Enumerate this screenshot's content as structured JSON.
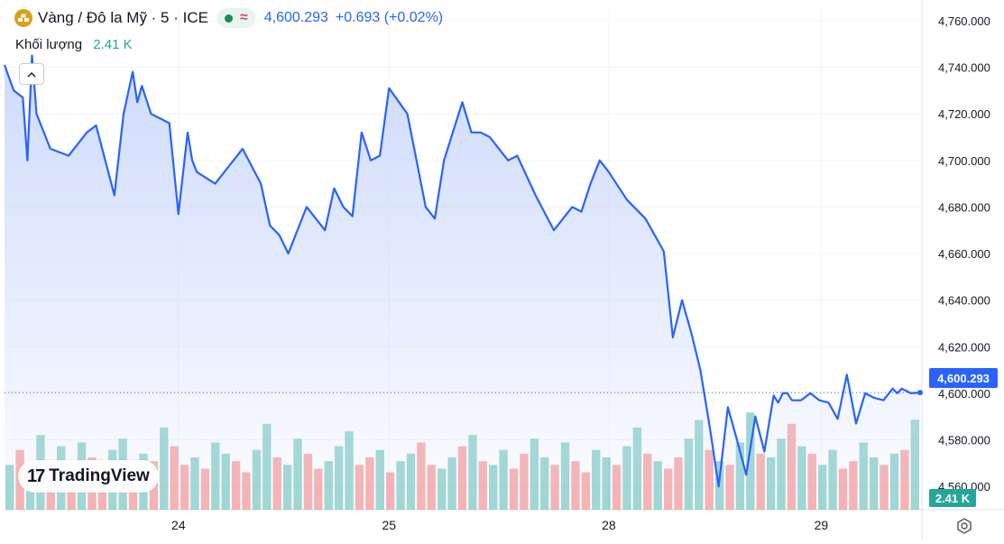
{
  "legend": {
    "symbol_title": "Vàng / Đô la Mỹ · 5 · ICE",
    "symbol_icon": "gold-bars-icon",
    "market_status": "market-open-dot",
    "approx": "≈",
    "price": "4,600.293",
    "change": "+0.693 (+0.02%)",
    "volume_label": "Khối lượng",
    "volume_value": "2.41 K"
  },
  "branding": {
    "logo_mark": "17",
    "logo_text": "TradingView"
  },
  "price_axis": {
    "current_price_label": "4,600.293",
    "current_volume_label": "2.41 K"
  },
  "colors": {
    "line": "#2962ff",
    "area_top": "#c9d7fb",
    "vol_up": "#26a69a",
    "vol_down": "#ef5350",
    "vol_tag": "#26a69a",
    "price_tag": "#2962ff"
  },
  "chart_data": {
    "type": "area",
    "title": "Vàng / Đô la Mỹ · 5 · ICE",
    "xlabel": "",
    "ylabel": "",
    "ylim": [
      4550,
      4765
    ],
    "y_ticks": [
      4760,
      4740,
      4720,
      4700,
      4680,
      4660,
      4640,
      4620,
      4600,
      4580,
      4560
    ],
    "y_tick_labels": [
      "4,760.000",
      "4,740.000",
      "4,720.000",
      "4,700.000",
      "4,680.000",
      "4,660.000",
      "4,640.000",
      "4,620.000",
      "4,600.000",
      "4,580.000",
      "4,560.000"
    ],
    "x_tick_labels": [
      "24",
      "25",
      "28",
      "29"
    ],
    "x_tick_index": [
      0.19,
      0.42,
      0.66,
      0.892
    ],
    "x": [
      0,
      0.01,
      0.02,
      0.025,
      0.03,
      0.035,
      0.05,
      0.07,
      0.09,
      0.1,
      0.11,
      0.12,
      0.13,
      0.14,
      0.145,
      0.15,
      0.16,
      0.18,
      0.19,
      0.2,
      0.205,
      0.21,
      0.23,
      0.26,
      0.28,
      0.29,
      0.3,
      0.31,
      0.33,
      0.35,
      0.36,
      0.37,
      0.38,
      0.39,
      0.4,
      0.41,
      0.42,
      0.44,
      0.46,
      0.47,
      0.48,
      0.5,
      0.51,
      0.52,
      0.53,
      0.54,
      0.55,
      0.56,
      0.58,
      0.6,
      0.62,
      0.63,
      0.64,
      0.65,
      0.66,
      0.68,
      0.7,
      0.72,
      0.73,
      0.74,
      0.75,
      0.76,
      0.77,
      0.78,
      0.79,
      0.8,
      0.81,
      0.82,
      0.83,
      0.84,
      0.845,
      0.85,
      0.855,
      0.86,
      0.87,
      0.88,
      0.89,
      0.9,
      0.91,
      0.92,
      0.93,
      0.94,
      0.95,
      0.96,
      0.97,
      0.975,
      0.98,
      0.99,
      1.0
    ],
    "values": [
      4741,
      4730,
      4727,
      4700,
      4745,
      4720,
      4705,
      4702,
      4712,
      4715,
      4700,
      4685,
      4720,
      4738,
      4725,
      4732,
      4720,
      4716,
      4677,
      4712,
      4700,
      4695,
      4690,
      4705,
      4690,
      4672,
      4668,
      4660,
      4680,
      4670,
      4688,
      4680,
      4676,
      4712,
      4700,
      4702,
      4731,
      4720,
      4680,
      4675,
      4700,
      4725,
      4712,
      4712,
      4710,
      4705,
      4700,
      4702,
      4685,
      4670,
      4680,
      4678,
      4690,
      4700,
      4695,
      4683,
      4675,
      4661,
      4624,
      4640,
      4626,
      4610,
      4586,
      4560,
      4594,
      4580,
      4565,
      4590,
      4575,
      4599,
      4596,
      4600,
      4600,
      4597,
      4597,
      4600,
      4597,
      4596,
      4589,
      4608,
      4587,
      4600,
      4598,
      4597,
      4602,
      4600,
      4602,
      4600,
      4600.293
    ],
    "volume": {
      "ylim": [
        0,
        3.5
      ],
      "values": [
        1.2,
        1.6,
        1.1,
        2.0,
        1.3,
        1.7,
        0.9,
        1.8,
        1.4,
        1.2,
        1.6,
        1.9,
        1.1,
        1.5,
        1.3,
        2.2,
        1.7,
        1.2,
        1.4,
        1.1,
        1.8,
        1.5,
        1.3,
        1.0,
        1.6,
        2.3,
        1.4,
        1.2,
        1.9,
        1.5,
        1.1,
        1.3,
        1.7,
        2.1,
        1.2,
        1.4,
        1.6,
        1.0,
        1.3,
        1.5,
        1.8,
        1.2,
        1.1,
        1.4,
        1.7,
        2.0,
        1.3,
        1.2,
        1.6,
        1.1,
        1.5,
        1.9,
        1.4,
        1.2,
        1.8,
        1.3,
        1.0,
        1.6,
        1.4,
        1.2,
        1.7,
        2.2,
        1.5,
        1.3,
        1.1,
        1.4,
        1.9,
        2.4,
        1.6,
        1.3,
        1.2,
        1.8,
        2.6,
        1.5,
        1.4,
        1.9,
        2.3,
        1.7,
        1.5,
        1.2,
        1.6,
        1.1,
        1.3,
        1.8,
        1.4,
        1.2,
        1.5,
        1.6,
        2.41
      ],
      "up": [
        1,
        0,
        1,
        1,
        0,
        1,
        0,
        1,
        0,
        0,
        1,
        1,
        0,
        1,
        0,
        1,
        0,
        0,
        1,
        0,
        1,
        1,
        0,
        0,
        1,
        1,
        0,
        1,
        1,
        0,
        0,
        1,
        1,
        1,
        0,
        0,
        1,
        0,
        1,
        1,
        0,
        0,
        1,
        1,
        0,
        1,
        0,
        1,
        1,
        0,
        0,
        1,
        1,
        0,
        1,
        0,
        0,
        1,
        1,
        0,
        1,
        1,
        0,
        1,
        0,
        0,
        1,
        1,
        0,
        1,
        0,
        1,
        1,
        0,
        1,
        1,
        0,
        1,
        0,
        1,
        1,
        0,
        0,
        1,
        1,
        0,
        1,
        0,
        1
      ]
    }
  }
}
